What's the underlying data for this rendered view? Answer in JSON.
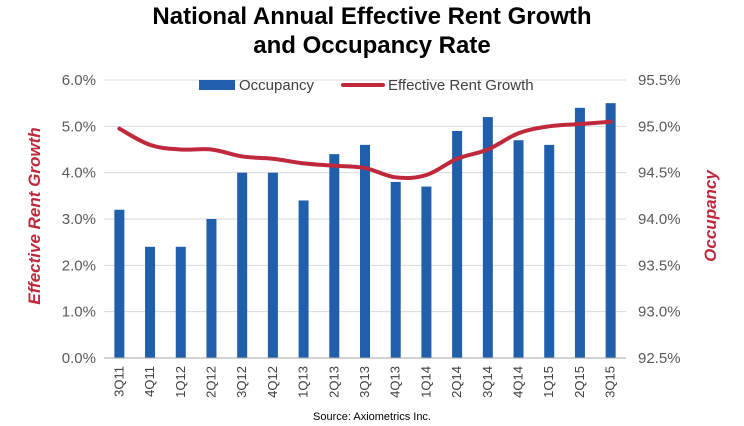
{
  "colors": {
    "bar": "#1f5fab",
    "line": "#c0283b",
    "axis_title": "#c0283b",
    "grid": "#d9d9d9",
    "axis": "#a6a6a6"
  },
  "chart_data": {
    "type": "bar",
    "title_line1": "National Annual Effective Rent Growth",
    "title_line2": "and Occupancy Rate",
    "categories": [
      "3Q11",
      "4Q11",
      "1Q12",
      "2Q12",
      "3Q12",
      "4Q12",
      "1Q13",
      "2Q13",
      "3Q13",
      "4Q13",
      "1Q14",
      "2Q14",
      "3Q14",
      "4Q14",
      "1Q15",
      "2Q15",
      "3Q15"
    ],
    "series": [
      {
        "name": "Occupancy",
        "type": "bar",
        "axis": "right",
        "values": [
          94.1,
          93.7,
          93.7,
          94.0,
          94.5,
          94.5,
          94.2,
          94.7,
          94.8,
          94.4,
          94.35,
          94.95,
          95.1,
          94.85,
          94.8,
          95.2,
          95.25
        ]
      },
      {
        "name": "Effective Rent Growth",
        "type": "line",
        "axis": "left",
        "values": [
          4.95,
          4.6,
          4.5,
          4.5,
          4.35,
          4.3,
          4.2,
          4.15,
          4.1,
          3.9,
          3.95,
          4.3,
          4.5,
          4.85,
          5.0,
          5.05,
          5.1
        ]
      }
    ],
    "ylabel_left": "Effective Rent Growth",
    "ylabel_right": "Occupancy",
    "ylim_left": [
      0.0,
      6.0
    ],
    "ylim_right": [
      92.5,
      95.5
    ],
    "yticks_left": [
      "0.0%",
      "1.0%",
      "2.0%",
      "3.0%",
      "4.0%",
      "5.0%",
      "6.0%"
    ],
    "yticks_right": [
      "92.5%",
      "93.0%",
      "93.5%",
      "94.0%",
      "94.5%",
      "95.0%",
      "95.5%"
    ],
    "grid": true,
    "legend_position": "top",
    "source": "Source: Axiometrics Inc."
  }
}
